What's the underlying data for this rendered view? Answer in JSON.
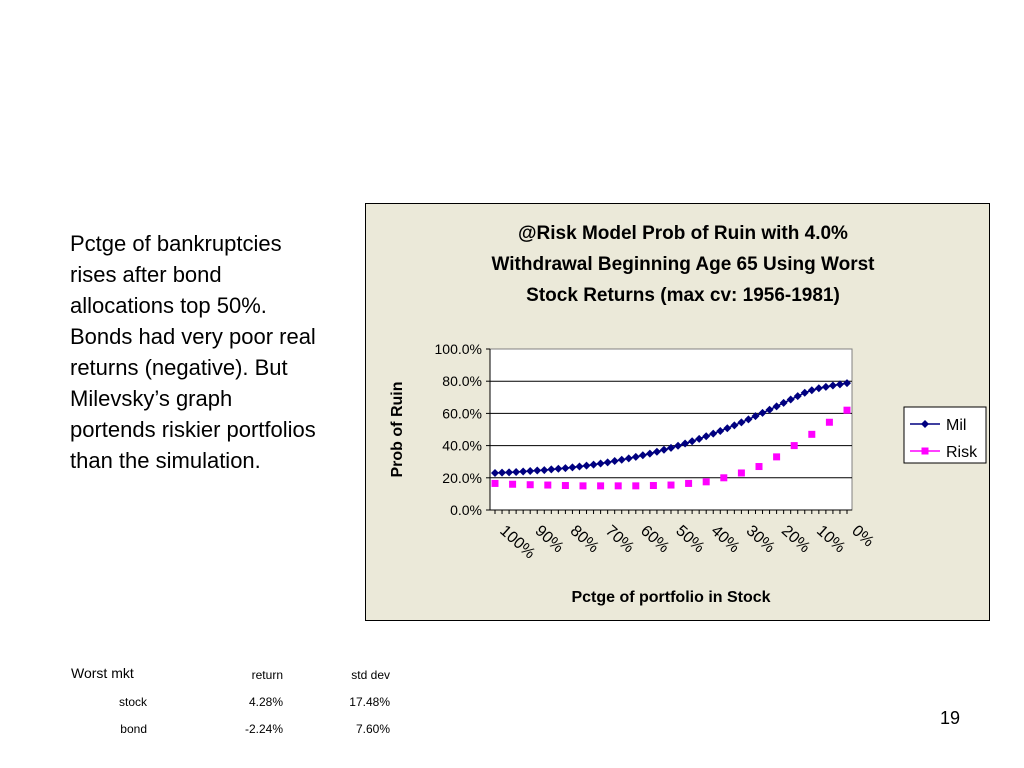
{
  "side_text": "Pctge of bankruptcies rises after bond allocations top 50%. Bonds had very poor real returns (negative). But Milevsky’s graph portends riskier portfolios than the simulation.",
  "page_number": "19",
  "stats_table": {
    "title": "Worst mkt",
    "headers": [
      "return",
      "std dev"
    ],
    "rows": [
      {
        "label": "stock",
        "return": "4.28%",
        "std_dev": "17.48%"
      },
      {
        "label": "bond",
        "return": "-2.24%",
        "std_dev": "7.60%"
      }
    ]
  },
  "chart_data": {
    "type": "line",
    "title_lines": [
      "@Risk Model Prob of Ruin with 4.0%",
      "Withdrawal Beginning Age 65 Using Worst",
      "Stock Returns (max cv: 1956-1981)"
    ],
    "xlabel": "Pctge of portfolio in Stock",
    "ylabel": "Prob of Ruin",
    "x": [
      100,
      98,
      96,
      94,
      92,
      90,
      88,
      86,
      84,
      82,
      80,
      78,
      76,
      74,
      72,
      70,
      68,
      66,
      64,
      62,
      60,
      58,
      56,
      54,
      52,
      50,
      48,
      46,
      44,
      42,
      40,
      38,
      36,
      34,
      32,
      30,
      28,
      26,
      24,
      22,
      20,
      18,
      16,
      14,
      12,
      10,
      8,
      6,
      4,
      2,
      0
    ],
    "x_tick_labels": [
      "100%",
      "90%",
      "80%",
      "70%",
      "60%",
      "50%",
      "40%",
      "30%",
      "20%",
      "10%",
      "0%"
    ],
    "ylim": [
      0,
      100
    ],
    "y_tick_labels": [
      "100.0%",
      "80.0%",
      "60.0%",
      "40.0%",
      "20.0%",
      "0.0%"
    ],
    "legend_position": "right",
    "grid": true,
    "series": [
      {
        "name": "Mil",
        "color": "#000080",
        "marker": "diamond",
        "values": [
          23.0,
          23.2,
          23.4,
          23.6,
          23.9,
          24.2,
          24.5,
          24.8,
          25.2,
          25.6,
          26.0,
          26.5,
          27.0,
          27.6,
          28.2,
          28.9,
          29.6,
          30.4,
          31.2,
          32.1,
          33.0,
          34.0,
          35.0,
          36.2,
          37.4,
          38.6,
          39.9,
          41.3,
          42.7,
          44.2,
          45.8,
          47.4,
          49.1,
          50.8,
          52.6,
          54.4,
          56.3,
          58.3,
          60.3,
          62.3,
          64.4,
          66.5,
          68.6,
          70.7,
          72.8,
          74.4,
          75.6,
          76.5,
          77.3,
          78.0,
          78.8
        ]
      },
      {
        "name": "Risk",
        "color": "#ff00ff",
        "marker": "square",
        "x": [
          100,
          95,
          90,
          85,
          80,
          75,
          70,
          65,
          60,
          55,
          50,
          45,
          40,
          35,
          30,
          25,
          20,
          15,
          10,
          5,
          0
        ],
        "values": [
          16.5,
          16.0,
          15.7,
          15.5,
          15.2,
          15.0,
          15.0,
          15.0,
          15.0,
          15.2,
          15.5,
          16.5,
          17.5,
          20.0,
          23.0,
          27.0,
          33.0,
          40.0,
          47.0,
          54.5,
          62.0
        ]
      }
    ]
  }
}
